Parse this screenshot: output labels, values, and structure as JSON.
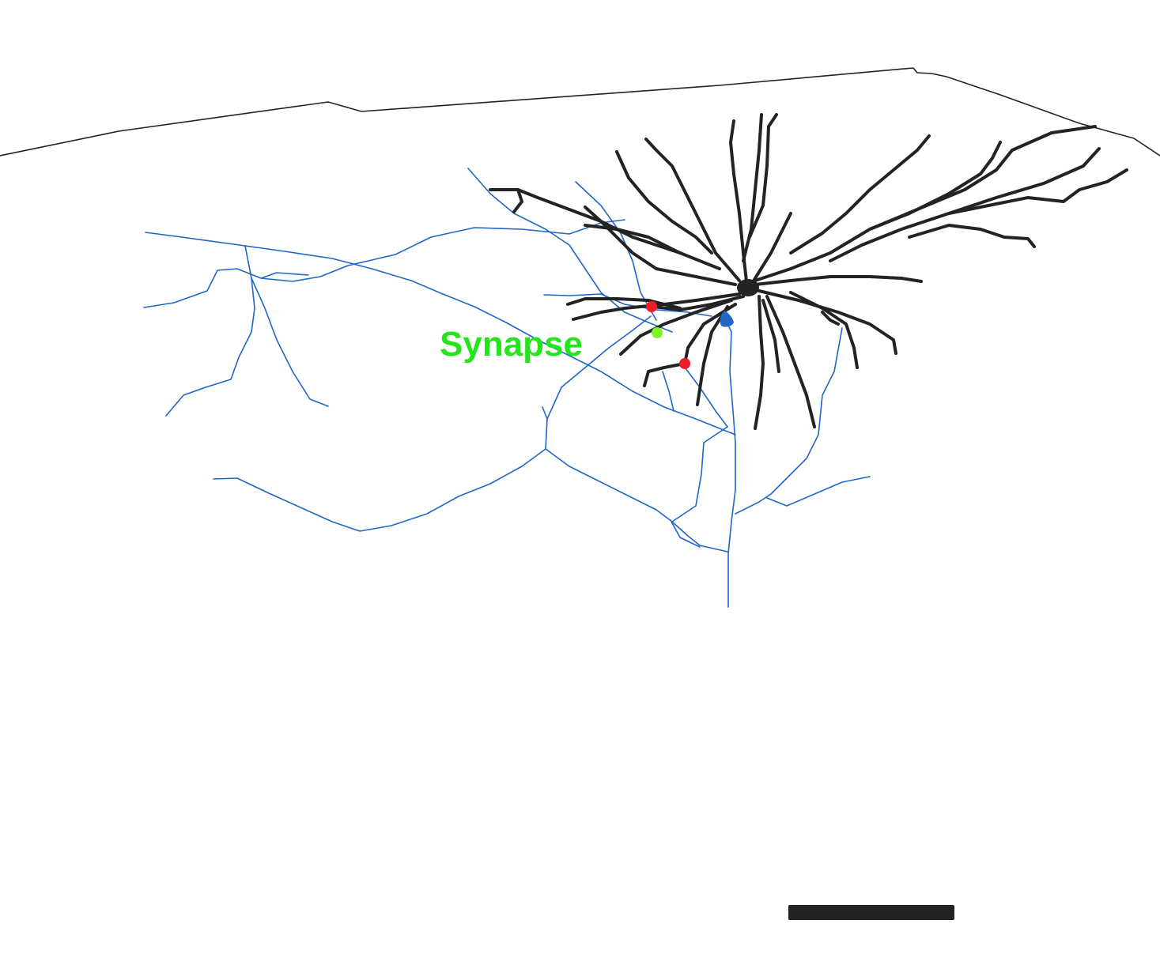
{
  "label": {
    "text": "Synapse"
  },
  "colors": {
    "background": "#ffffff",
    "pia_outline": "#222222",
    "presynaptic_axon": "#1f66c6",
    "postsynaptic_neuron": "#232323",
    "synapse_marker": "#7cf526",
    "contact_marker": "#ee1c25",
    "label": "#22e61a",
    "scale_bar": "#222222"
  },
  "icons": {
    "synapse": "green-dot-icon",
    "contact": "red-dot-icon",
    "presynaptic_soma": "blue-soma-icon",
    "postsynaptic_soma": "black-soma-icon"
  }
}
